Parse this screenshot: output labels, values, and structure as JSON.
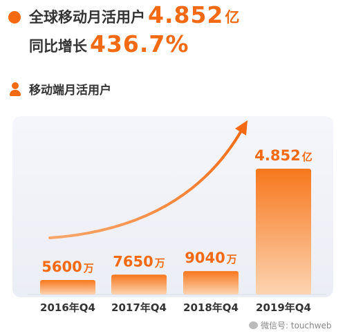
{
  "headline": {
    "line1_label": "全球移动月活用户",
    "line1_value": "4.852",
    "line1_unit": "亿",
    "line2_label": "同比增长",
    "line2_value": "436.7%"
  },
  "legend_label": "移动端月活用户",
  "watermark": "微信号: touchweb",
  "colors": {
    "accent": "#f46a12",
    "bar_top": "#f7771c",
    "bar_bottom": "#fcd4b2"
  },
  "chart_data": {
    "type": "bar",
    "categories": [
      "2016年Q4",
      "2017年Q4",
      "2018年Q4",
      "2019年Q4"
    ],
    "values_wan": [
      5600,
      7650,
      9040,
      48520
    ],
    "labels": [
      {
        "num": "5600",
        "unit": "万"
      },
      {
        "num": "7650",
        "unit": "万"
      },
      {
        "num": "9040",
        "unit": "万"
      },
      {
        "num": "4.852",
        "unit": "亿"
      }
    ],
    "ylim": [
      0,
      48520
    ],
    "grid": false,
    "trend_arrow": true
  }
}
